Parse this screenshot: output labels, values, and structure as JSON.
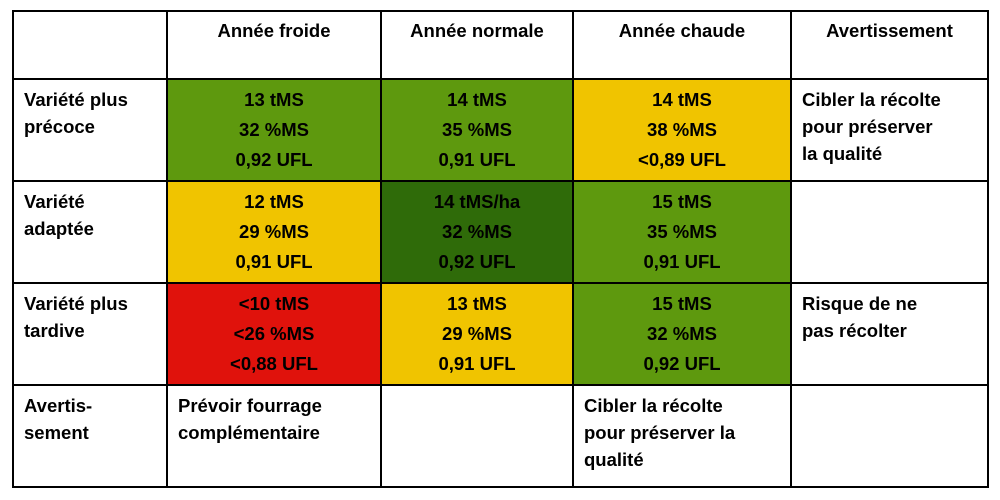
{
  "colors": {
    "green": "#5e990e",
    "dark_green": "#2f6b09",
    "yellow": "#f0c400",
    "red": "#e0120c"
  },
  "header": {
    "corner": "",
    "columns": [
      "Année froide",
      "Année normale",
      "Année chaude",
      "Avertissement"
    ]
  },
  "rows": [
    {
      "label_lines": [
        "Variété plus",
        "précoce"
      ],
      "cells": [
        {
          "lines": [
            "13 tMS",
            "32 %MS",
            "0,92 UFL"
          ],
          "color": "green",
          "text_color": "black"
        },
        {
          "lines": [
            "14 tMS",
            "35 %MS",
            "0,91 UFL"
          ],
          "color": "green",
          "text_color": "black"
        },
        {
          "lines": [
            "14 tMS",
            "38 %MS",
            "<0,89 UFL"
          ],
          "color": "yellow",
          "text_color": "black"
        }
      ],
      "warning_lines": [
        "Cibler la récolte",
        "pour préserver",
        "la qualité"
      ]
    },
    {
      "label_lines": [
        "Variété",
        "adaptée"
      ],
      "cells": [
        {
          "lines": [
            "12 tMS",
            "29 %MS",
            "0,91 UFL"
          ],
          "color": "yellow",
          "text_color": "black"
        },
        {
          "lines": [
            "14 tMS/ha",
            "32 %MS",
            "0,92 UFL"
          ],
          "color": "dark_green",
          "text_color": "white"
        },
        {
          "lines": [
            "15 tMS",
            "35 %MS",
            "0,91 UFL"
          ],
          "color": "green",
          "text_color": "black"
        }
      ],
      "warning_lines": []
    },
    {
      "label_lines": [
        "Variété plus",
        "tardive"
      ],
      "cells": [
        {
          "lines": [
            "<10 tMS",
            "<26 %MS",
            "<0,88 UFL"
          ],
          "color": "red",
          "text_color": "white"
        },
        {
          "lines": [
            "13 tMS",
            "29 %MS",
            "0,91 UFL"
          ],
          "color": "yellow",
          "text_color": "black"
        },
        {
          "lines": [
            "15 tMS",
            "32 %MS",
            "0,92 UFL"
          ],
          "color": "green",
          "text_color": "black"
        }
      ],
      "warning_lines": [
        "Risque de ne",
        "pas récolter"
      ]
    }
  ],
  "footer": {
    "label_lines": [
      "Avertis-",
      "sement"
    ],
    "cells": [
      [
        "Prévoir fourrage",
        "complémentaire"
      ],
      [],
      [
        "Cibler la récolte",
        "pour préserver la",
        "qualité"
      ],
      []
    ]
  }
}
